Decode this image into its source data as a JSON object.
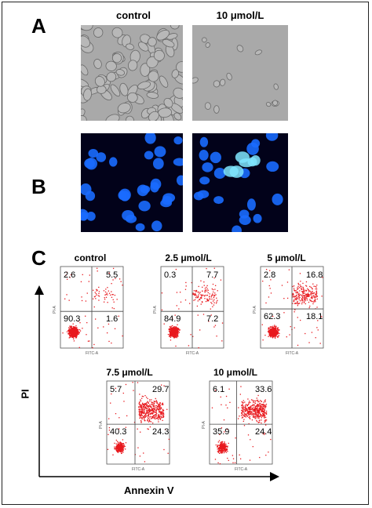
{
  "panels": {
    "A": {
      "letter": "A",
      "headers": [
        "control",
        "10 μmol/L"
      ]
    },
    "B": {
      "letter": "B"
    },
    "C": {
      "letter": "C",
      "y_axis_title": "PI",
      "x_axis_title": "Annexin V",
      "plot_x_label": "FITC-A",
      "plot_y_label": "PI-A",
      "plots": [
        {
          "label": "control",
          "q": {
            "ul": "2.6",
            "ur": "5.5",
            "ll": "90.3",
            "lr": "1.6"
          }
        },
        {
          "label": "2.5 μmol/L",
          "q": {
            "ul": "0.3",
            "ur": "7.7",
            "ll": "84.9",
            "lr": "7.2"
          }
        },
        {
          "label": "5 μmol/L",
          "q": {
            "ul": "2.8",
            "ur": "16.8",
            "ll": "62.3",
            "lr": "18.1"
          }
        },
        {
          "label": "7.5 μmol/L",
          "q": {
            "ul": "5.7",
            "ur": "29.7",
            "ll": "40.3",
            "lr": "24.3"
          }
        },
        {
          "label": "10 μmol/L",
          "q": {
            "ul": "6.1",
            "ur": "33.6",
            "ll": "35.9",
            "lr": "24.4"
          }
        }
      ]
    }
  },
  "colors": {
    "dots": "#e8191e",
    "nuclei": "#1a6cff",
    "apoptotic": "#7fe6ff",
    "phase_bg": "#a9a9a9"
  }
}
